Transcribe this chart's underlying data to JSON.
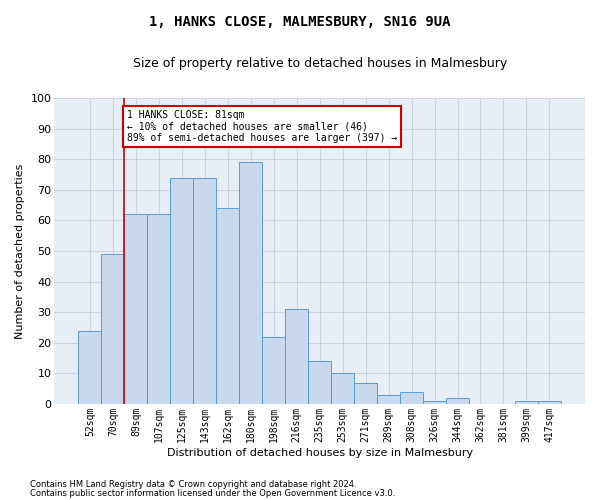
{
  "title": "1, HANKS CLOSE, MALMESBURY, SN16 9UA",
  "subtitle": "Size of property relative to detached houses in Malmesbury",
  "xlabel": "Distribution of detached houses by size in Malmesbury",
  "ylabel": "Number of detached properties",
  "footnote1": "Contains HM Land Registry data © Crown copyright and database right 2024.",
  "footnote2": "Contains public sector information licensed under the Open Government Licence v3.0.",
  "categories": [
    "52sqm",
    "70sqm",
    "89sqm",
    "107sqm",
    "125sqm",
    "143sqm",
    "162sqm",
    "180sqm",
    "198sqm",
    "216sqm",
    "235sqm",
    "253sqm",
    "271sqm",
    "289sqm",
    "308sqm",
    "326sqm",
    "344sqm",
    "362sqm",
    "381sqm",
    "399sqm",
    "417sqm"
  ],
  "bar_values": [
    24,
    49,
    62,
    62,
    74,
    74,
    64,
    79,
    22,
    31,
    14,
    10,
    7,
    3,
    4,
    1,
    2,
    0,
    0,
    1,
    1
  ],
  "bar_color": "#c9d9ed",
  "bar_edge_color": "#5a9bd5",
  "vline_position": 1.5,
  "vline_color": "#cc0000",
  "annotation_text": "1 HANKS CLOSE: 81sqm\n← 10% of detached houses are smaller (46)\n89% of semi-detached houses are larger (397) →",
  "annotation_box_facecolor": "#ffffff",
  "annotation_box_edgecolor": "#cc0000",
  "ylim": [
    0,
    100
  ],
  "yticks": [
    0,
    10,
    20,
    30,
    40,
    50,
    60,
    70,
    80,
    90,
    100
  ],
  "plot_bg_color": "#e8eef5",
  "background_color": "#ffffff",
  "grid_color": "#c8d0dc",
  "title_fontsize": 10,
  "subtitle_fontsize": 9,
  "tick_fontsize": 7,
  "ylabel_fontsize": 8,
  "xlabel_fontsize": 8,
  "footnote_fontsize": 6
}
